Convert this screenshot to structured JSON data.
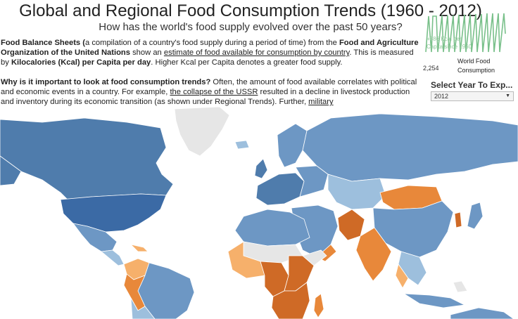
{
  "header": {
    "title": "Global and Regional Food Consumption Trends (1960 - 2012)",
    "subtitle": "How has the world's food supply evolved over the past 50 years?"
  },
  "intro": {
    "p1_a": "Food Balance Sheets (",
    "p1_b": "a compilation of a country's food supply during a period of time) from the ",
    "p1_c": "Food and Agriculture Organization of the United Nations",
    "p1_d": " show an ",
    "p1_link": "estimate of food available for consumption by country",
    "p1_e": ". This is measured by ",
    "p1_f": "Kilocalories (Kcal) per Capita per day",
    "p1_g": ". Higher Kcal per Capita denotes a greater food supply.",
    "p2_a": "Why is it important to look at food consumption trends?",
    "p2_b": " Often, the amount of food available correlates with political and economic events in a country. For example, ",
    "p2_link": "the collapse of the USSR",
    "p2_c": " resulted in a decline in livestock production and inventory during its economic transition (as shown under Regional Trends). Further, ",
    "p2_link2": "military"
  },
  "world_food": {
    "note": "+686 Kcal per Capita since 1960",
    "min_value": "2,254",
    "label_line1": "World Food",
    "label_line2": "Consumption"
  },
  "year_filter": {
    "title": "Select Year To Exp...",
    "selected": "2012"
  },
  "colors": {
    "dark_blue": "#4f7cac",
    "mid_blue": "#6d97c4",
    "light_blue": "#9dbfdd",
    "pale": "#e6e6e6",
    "light_orange": "#f6b06b",
    "orange": "#e8883a",
    "dark_orange": "#cf6a26",
    "spark_green": "#79c08a"
  }
}
